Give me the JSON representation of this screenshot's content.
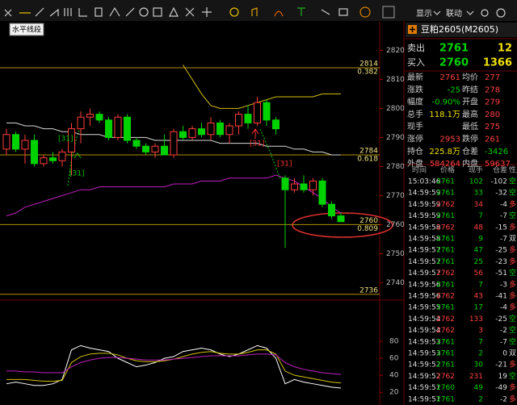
{
  "toolbar": {
    "tooltip": "水平线段",
    "display": "显示",
    "link": "联动"
  },
  "chart_data": [
    {
      "type": "candlestick",
      "candles": [
        [
          2786,
          2793,
          2784,
          2791
        ],
        [
          2791,
          2792,
          2785,
          2786
        ],
        [
          2786,
          2791,
          2781,
          2789
        ],
        [
          2789,
          2791,
          2780,
          2781
        ],
        [
          2781,
          2784,
          2780,
          2783
        ],
        [
          2783,
          2785,
          2781,
          2782
        ],
        [
          2782,
          2786,
          2780,
          2785
        ],
        [
          2785,
          2795,
          2777,
          2793
        ],
        [
          2793,
          2799,
          2788,
          2797
        ],
        [
          2797,
          2800,
          2794,
          2798
        ],
        [
          2798,
          2799,
          2795,
          2796
        ],
        [
          2796,
          2797,
          2789,
          2790
        ],
        [
          2790,
          2798,
          2789,
          2797
        ],
        [
          2797,
          2798,
          2788,
          2789
        ],
        [
          2789,
          2790,
          2786,
          2787
        ],
        [
          2787,
          2788,
          2784,
          2785
        ],
        [
          2785,
          2788,
          2783,
          2787
        ],
        [
          2787,
          2791,
          2784,
          2784
        ],
        [
          2784,
          2793,
          2783,
          2792
        ],
        [
          2792,
          2794,
          2789,
          2790
        ],
        [
          2790,
          2794,
          2789,
          2793
        ],
        [
          2793,
          2795,
          2790,
          2791
        ],
        [
          2791,
          2797,
          2789,
          2795
        ],
        [
          2795,
          2796,
          2790,
          2791
        ],
        [
          2791,
          2795,
          2788,
          2794
        ],
        [
          2794,
          2799,
          2791,
          2798
        ],
        [
          2798,
          2801,
          2793,
          2795
        ],
        [
          2795,
          2804,
          2794,
          2802
        ],
        [
          2802,
          2803,
          2794,
          2796
        ],
        [
          2796,
          2797,
          2791,
          2793
        ],
        [
          2776,
          2777,
          2752,
          2772
        ],
        [
          2772,
          2776,
          2771,
          2774
        ],
        [
          2774,
          2777,
          2771,
          2772
        ],
        [
          2772,
          2776,
          2770,
          2775
        ],
        [
          2775,
          2776,
          2766,
          2767
        ],
        [
          2767,
          2768,
          2762,
          2763
        ],
        [
          2763,
          2764,
          2761,
          2761
        ]
      ],
      "up_color": "#ff3b3b",
      "down_color": "#00d200",
      "series": [
        {
          "color": "#d4c000",
          "values": [
            null,
            null,
            null,
            null,
            null,
            null,
            null,
            null,
            null,
            null,
            null,
            null,
            null,
            null,
            null,
            null,
            null,
            null,
            null,
            2815,
            2810,
            2805,
            2801,
            2800,
            2800,
            2800,
            2801,
            2802,
            2803,
            2804,
            2804,
            2804,
            2804,
            2804,
            2805,
            2805,
            2805
          ]
        },
        {
          "color": "#d8d8d8",
          "values": [
            2795,
            2795,
            2794,
            2794,
            2793,
            2793,
            2792,
            2792,
            2791,
            2791,
            2791,
            2790,
            2790,
            2790,
            2790,
            2790,
            2789,
            2789,
            2789,
            2789,
            2789,
            2789,
            2789,
            2788,
            2788,
            2788,
            2788,
            2788,
            2787,
            2787,
            2787,
            2786,
            2786,
            2785,
            2785,
            2784,
            2784
          ]
        },
        {
          "color": "#c020c0",
          "values": [
            2763,
            2764,
            2766,
            2767,
            2768,
            2769,
            2770,
            2771,
            2772,
            2772,
            2773,
            2773,
            2773,
            2773,
            2773,
            2773,
            2773,
            2773,
            2774,
            2774,
            2774,
            2775,
            2775,
            2775,
            2776,
            2776,
            2776,
            2776,
            2776,
            2777,
            2776,
            2775,
            2773,
            2771,
            2769,
            2766,
            2764
          ]
        }
      ],
      "ylim": [
        2734,
        2829
      ],
      "yticks": [
        2820,
        2810,
        2800,
        2790,
        2780,
        2770,
        2760,
        2750,
        2740
      ],
      "levels": [
        {
          "value": 2814,
          "ratio": 0.382
        },
        {
          "value": 2784,
          "ratio": 0.618
        },
        {
          "value": 2760,
          "ratio": 0.809
        },
        {
          "value": 2736
        }
      ],
      "annotations": [
        "[31]",
        "[31]",
        "[31]",
        "[31]"
      ]
    },
    {
      "type": "line",
      "series": [
        {
          "color": "#ffffff",
          "values": [
            30,
            32,
            30,
            28,
            28,
            30,
            35,
            70,
            75,
            72,
            70,
            68,
            60,
            55,
            50,
            52,
            55,
            60,
            62,
            68,
            70,
            72,
            70,
            65,
            62,
            65,
            70,
            75,
            72,
            60,
            30,
            35,
            32,
            30,
            28,
            26,
            25
          ]
        },
        {
          "color": "#d4c000",
          "values": [
            35,
            35,
            35,
            34,
            33,
            33,
            34,
            55,
            62,
            65,
            66,
            66,
            64,
            60,
            57,
            56,
            56,
            57,
            59,
            62,
            65,
            67,
            68,
            66,
            65,
            65,
            67,
            70,
            70,
            65,
            45,
            40,
            38,
            36,
            34,
            32,
            31
          ]
        },
        {
          "color": "#c020c0",
          "values": [
            45,
            45,
            44,
            44,
            43,
            43,
            43,
            50,
            55,
            58,
            60,
            61,
            61,
            60,
            59,
            58,
            58,
            58,
            59,
            60,
            61,
            62,
            63,
            63,
            63,
            63,
            64,
            65,
            65,
            64,
            55,
            50,
            47,
            45,
            43,
            42,
            41
          ]
        }
      ],
      "ylim": [
        5,
        120
      ],
      "yticks": [
        80,
        60,
        40,
        20
      ]
    }
  ],
  "quote": {
    "title": "豆粕2605(M2605)",
    "ask": {
      "label": "卖出",
      "price": 2761,
      "volume": 12
    },
    "bid": {
      "label": "买入",
      "price": 2760,
      "volume": 1366
    },
    "stats": [
      [
        {
          "label": "最新",
          "value": "2761"
        },
        {
          "label": "均价",
          "value": "277"
        }
      ],
      [
        {
          "label": "涨跌",
          "value": "-25"
        },
        {
          "label": "昨结",
          "value": "278"
        }
      ],
      [
        {
          "label": "幅度",
          "value": "-0.90%"
        },
        {
          "label": "开盘",
          "value": "279"
        }
      ],
      [
        {
          "label": "总手",
          "value": "118.1万"
        },
        {
          "label": "最高",
          "value": "280"
        }
      ],
      [
        {
          "label": "现手"
        },
        {
          "label": "最低",
          "value": "275"
        }
      ],
      [
        {
          "label": "涨停",
          "value": "2953"
        },
        {
          "label": "跌停",
          "value": "261"
        }
      ],
      [
        {
          "label": "持仓",
          "value": "225.8万"
        },
        {
          "label": "仓差",
          "value": "-3426"
        }
      ],
      [
        {
          "label": "外盘",
          "value": "584264"
        },
        {
          "label": "内盘",
          "value": "59637"
        }
      ]
    ]
  },
  "trades": {
    "header": [
      "时间",
      "价格",
      "现手",
      "仓差",
      "性质"
    ],
    "rows": [
      [
        "15:03:46",
        "2761",
        "102",
        "-102",
        "空"
      ],
      [
        "14:59:59",
        "2761",
        "33",
        "-32",
        "空"
      ],
      [
        "14:59:59",
        "2762",
        "34",
        "-4",
        "多"
      ],
      [
        "14:59:59",
        "2761",
        "7",
        "-7",
        "空"
      ],
      [
        "14:59:58",
        "2762",
        "48",
        "-15",
        "多"
      ],
      [
        "14:59:58",
        "2761",
        "9",
        "-7",
        "双"
      ],
      [
        "14:59:57",
        "2761",
        "47",
        "-25",
        "多"
      ],
      [
        "14:59:57",
        "2761",
        "25",
        "-23",
        "多"
      ],
      [
        "14:59:57",
        "2762",
        "56",
        "-51",
        "空"
      ],
      [
        "14:59:56",
        "2761",
        "7",
        "-3",
        "多"
      ],
      [
        "14:59:56",
        "2762",
        "43",
        "-41",
        "多"
      ],
      [
        "14:59:55",
        "2761",
        "17",
        "-4",
        "多"
      ],
      [
        "14:59:54",
        "2762",
        "133",
        "-25",
        "空"
      ],
      [
        "14:59:54",
        "2762",
        "3",
        "-2",
        "空"
      ],
      [
        "14:59:53",
        "2761",
        "7",
        "-7",
        "空"
      ],
      [
        "14:59:53",
        "2761",
        "2",
        "0",
        "双"
      ],
      [
        "14:59:52",
        "2761",
        "30",
        "-21",
        "多"
      ],
      [
        "14:59:52",
        "2762",
        "231",
        "19",
        "空"
      ],
      [
        "14:59:51",
        "2760",
        "49",
        "-49",
        "多"
      ],
      [
        "14:59:51",
        "2761",
        "2",
        "-2",
        "多"
      ]
    ]
  }
}
